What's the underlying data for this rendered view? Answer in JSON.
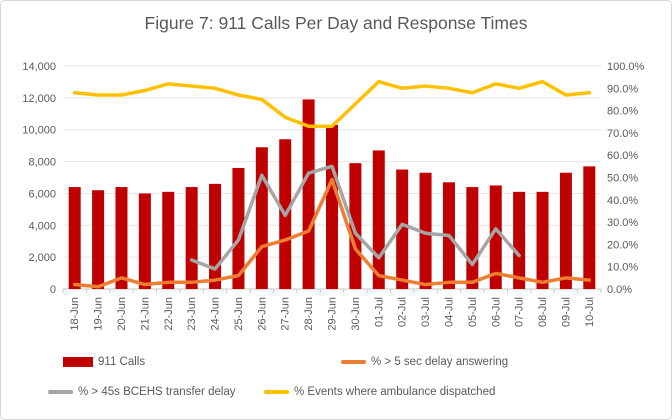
{
  "figure": {
    "title": "Figure 7: 911 Calls Per Day and Response Times"
  },
  "colors": {
    "calls": "#c00000",
    "delay_answering": "#ed7d31",
    "transfer_delay": "#a5a5a5",
    "ambulance_dispatched": "#ffc000",
    "axis_text": "#595959",
    "gridline": "#e6e6e6",
    "axis_line": "#c6c6c6"
  },
  "legend": {
    "items": [
      {
        "label": "911 Calls",
        "swatch": "bar",
        "color_key": "calls"
      },
      {
        "label": "% > 5 sec delay answering",
        "swatch": "line",
        "color_key": "delay_answering"
      },
      {
        "label": "% > 45s BCEHS transfer delay",
        "swatch": "line",
        "color_key": "transfer_delay"
      },
      {
        "label": "% Events where ambulance dispatched",
        "swatch": "line",
        "color_key": "ambulance_dispatched"
      }
    ]
  },
  "chart_data": {
    "type": "bar",
    "subtype": "combo-bar-line",
    "title": "Figure 7: 911 Calls Per Day and Response Times",
    "grid": true,
    "legend_position": "bottom",
    "categories": [
      "18-Jun",
      "19-Jun",
      "20-Jun",
      "21-Jun",
      "22-Jun",
      "23-Jun",
      "24-Jun",
      "25-Jun",
      "26-Jun",
      "27-Jun",
      "28-Jun",
      "29-Jun",
      "30-Jun",
      "01-Jul",
      "02-Jul",
      "03-Jul",
      "04-Jul",
      "05-Jul",
      "06-Jul",
      "07-Jul",
      "08-Jul",
      "09-Jul",
      "10-Jul"
    ],
    "left_axis": {
      "min": 0,
      "max": 14000,
      "step": 2000,
      "tick_labels": [
        "0",
        "2,000",
        "4,000",
        "6,000",
        "8,000",
        "10,000",
        "12,000",
        "14,000"
      ]
    },
    "right_axis": {
      "min": 0,
      "max": 100,
      "step": 10,
      "tick_labels": [
        "0.0%",
        "10.0%",
        "20.0%",
        "30.0%",
        "40.0%",
        "50.0%",
        "60.0%",
        "70.0%",
        "80.0%",
        "90.0%",
        "100.0%"
      ]
    },
    "series": [
      {
        "name": "911 Calls",
        "type": "bar",
        "axis": "left",
        "color_key": "calls",
        "values": [
          6400,
          6200,
          6400,
          6000,
          6100,
          6400,
          6600,
          7600,
          8900,
          9400,
          11900,
          10300,
          7900,
          8700,
          7500,
          7300,
          6700,
          6400,
          6500,
          6100,
          6100,
          7300,
          7700
        ]
      },
      {
        "name": "% > 5 sec delay answering",
        "type": "line",
        "axis": "right",
        "color_key": "delay_answering",
        "values": [
          2,
          1,
          5,
          2,
          3,
          3,
          4,
          6,
          19,
          22,
          26,
          49,
          18,
          6,
          4,
          2,
          3,
          3,
          7,
          5,
          3,
          5,
          4
        ]
      },
      {
        "name": "% > 45s BCEHS transfer delay",
        "type": "line",
        "axis": "right",
        "color_key": "transfer_delay",
        "values": [
          null,
          null,
          null,
          null,
          null,
          13,
          9,
          22,
          51,
          33,
          52,
          55,
          25,
          14,
          29,
          25,
          24,
          11,
          27,
          15,
          null,
          null,
          null
        ]
      },
      {
        "name": "% Events where ambulance dispatched",
        "type": "line",
        "axis": "right",
        "color_key": "ambulance_dispatched",
        "values": [
          88,
          87,
          87,
          89,
          92,
          91,
          90,
          87,
          85,
          77,
          73,
          73,
          83,
          93,
          90,
          91,
          90,
          88,
          92,
          90,
          93,
          87,
          88
        ]
      }
    ]
  }
}
